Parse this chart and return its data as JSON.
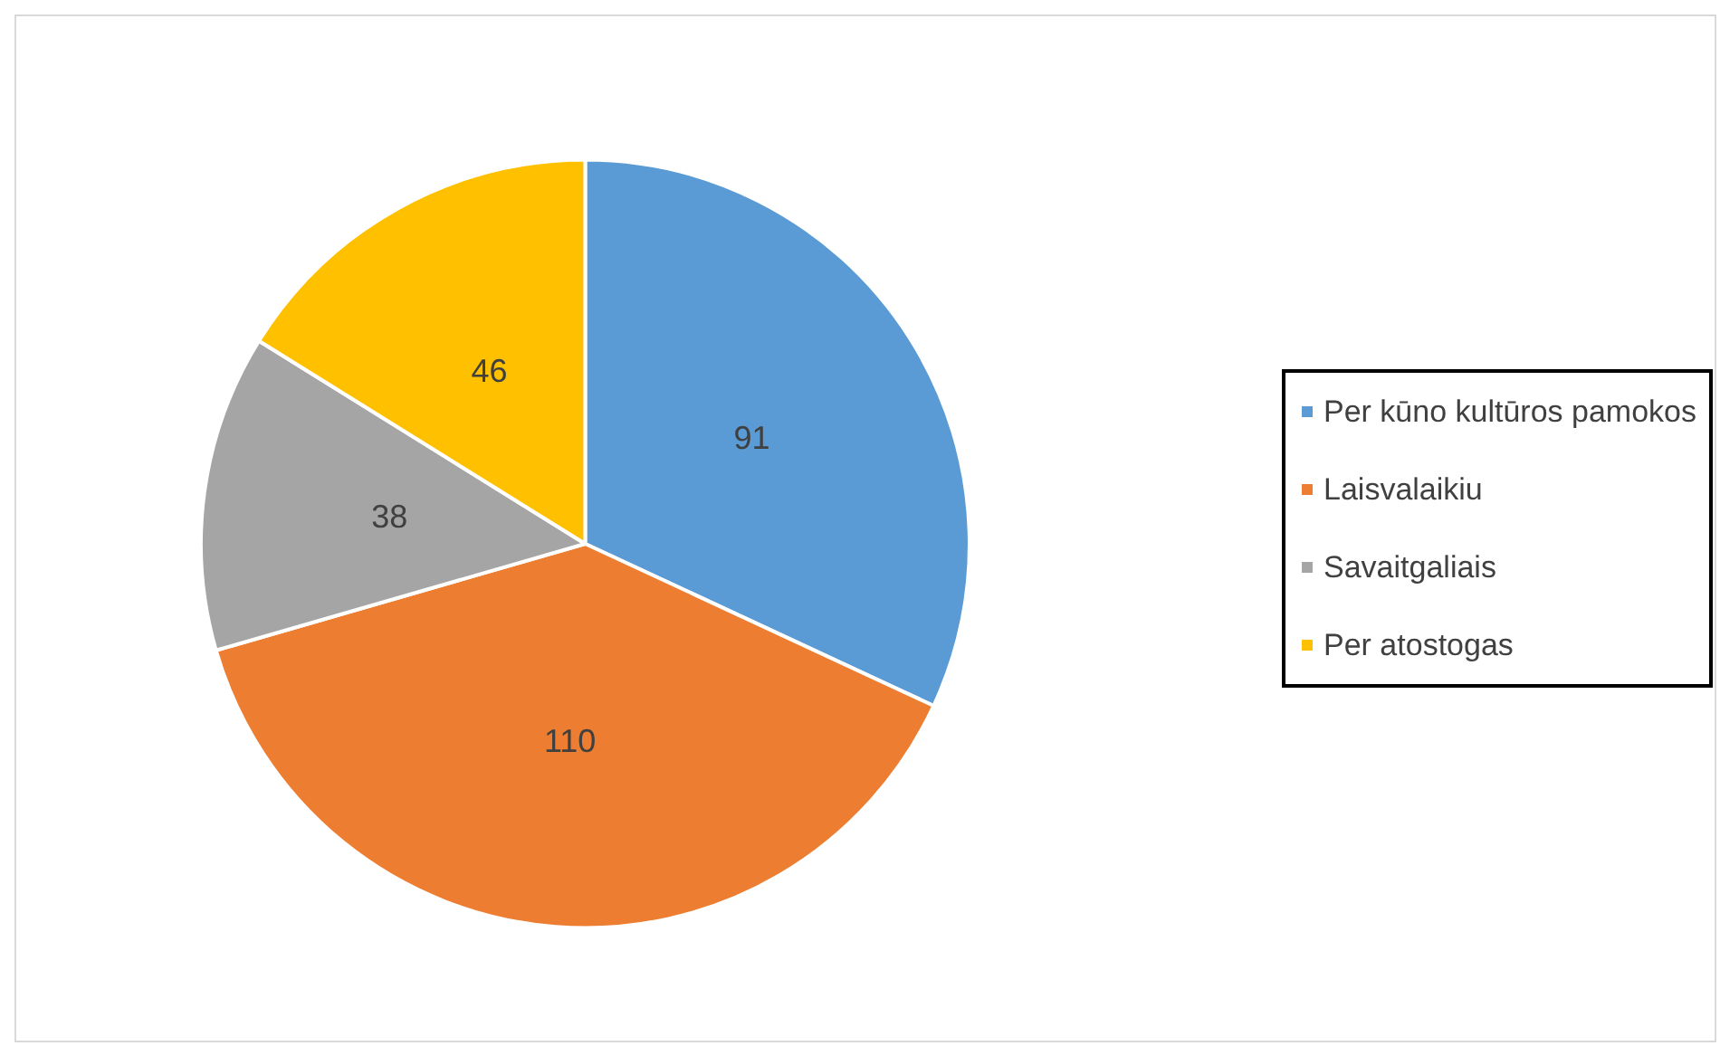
{
  "chart_data": {
    "type": "pie",
    "categories": [
      "Per kūno kultūros pamokos",
      "Laisvalaikiu",
      "Savaitgaliais",
      "Per atostogas"
    ],
    "values": [
      91,
      110,
      38,
      46
    ],
    "colors": [
      "#5b9bd5",
      "#ed7d31",
      "#a5a5a5",
      "#ffc000"
    ],
    "data_labels": true,
    "legend": "right"
  }
}
